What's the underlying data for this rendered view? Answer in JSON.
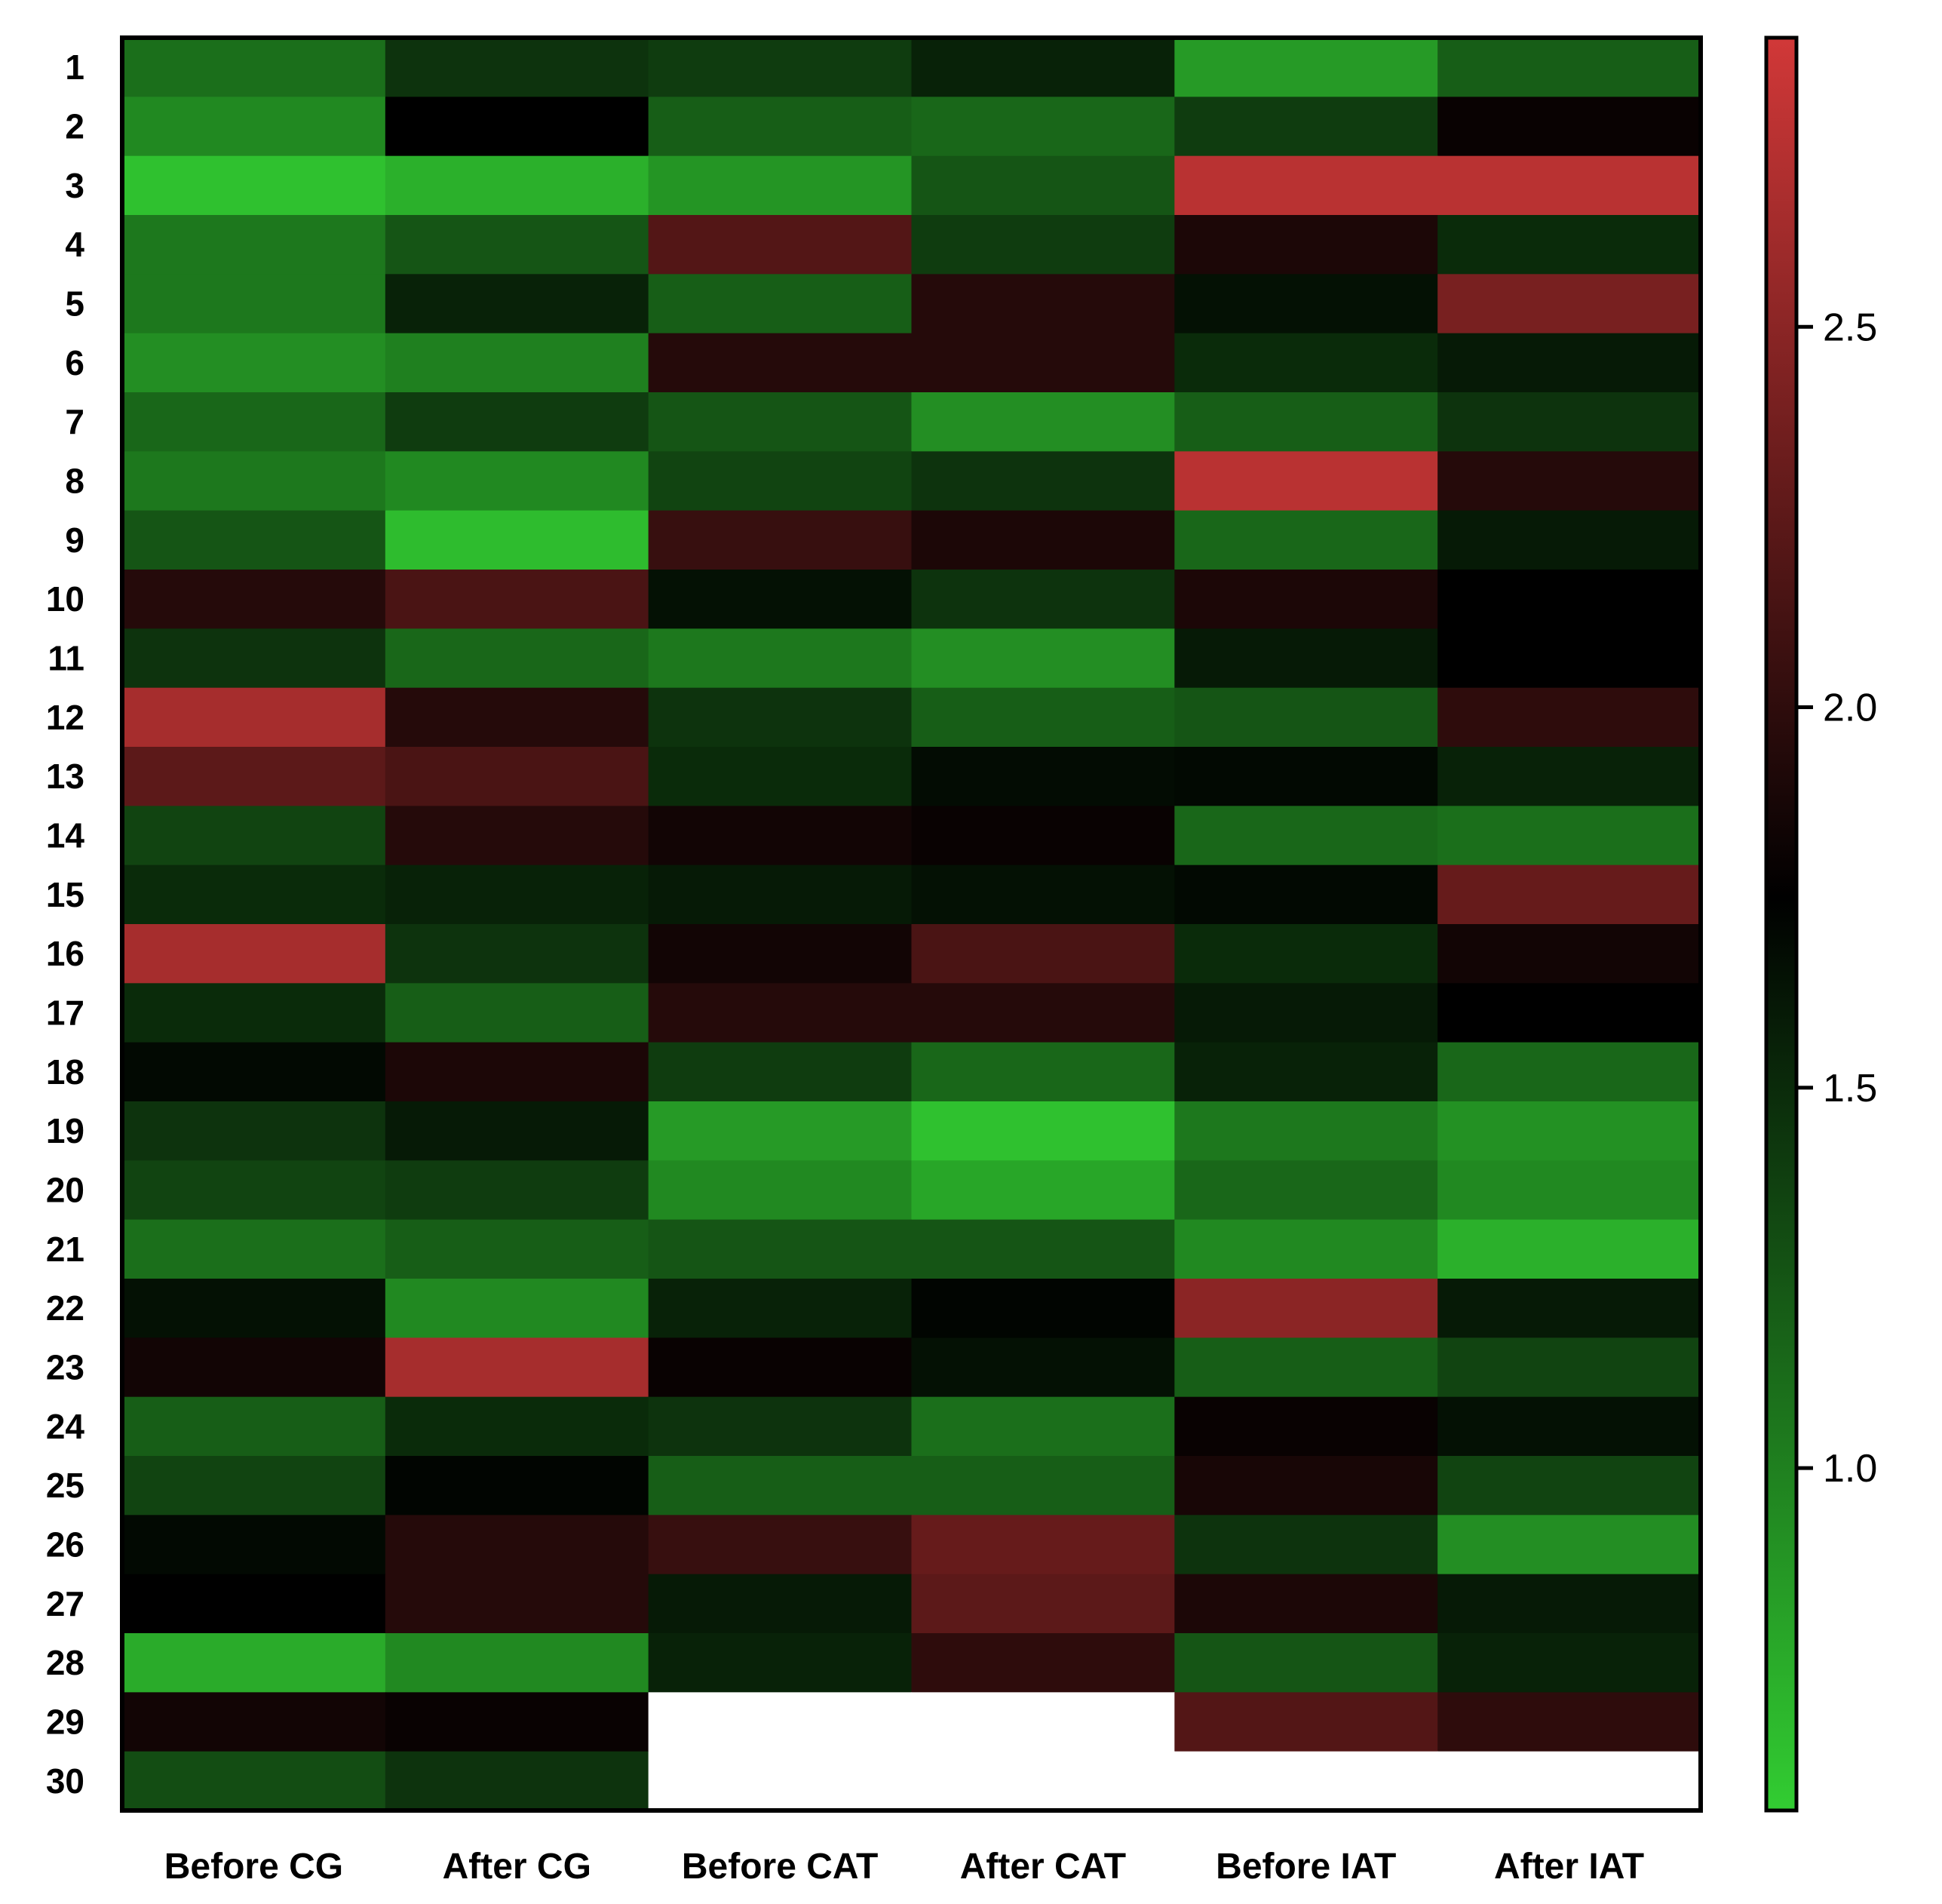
{
  "chart_data": {
    "type": "heatmap",
    "title": "",
    "xlabel": "",
    "ylabel": "",
    "columns": [
      "Before CG",
      "After CG",
      "Before CAT",
      "After CAT",
      "Before IAT",
      "After IAT"
    ],
    "rows": [
      "1",
      "2",
      "3",
      "4",
      "5",
      "6",
      "7",
      "8",
      "9",
      "10",
      "11",
      "12",
      "13",
      "14",
      "15",
      "16",
      "17",
      "18",
      "19",
      "20",
      "21",
      "22",
      "23",
      "24",
      "25",
      "26",
      "27",
      "28",
      "29",
      "30"
    ],
    "values": [
      [
        1.1,
        1.45,
        1.4,
        1.55,
        0.85,
        1.2
      ],
      [
        0.95,
        1.75,
        1.2,
        1.15,
        1.4,
        1.8
      ],
      [
        0.62,
        0.72,
        0.88,
        1.25,
        2.75,
        2.75
      ],
      [
        1.05,
        1.25,
        2.2,
        1.4,
        1.9,
        1.5
      ],
      [
        1.05,
        1.55,
        1.2,
        1.95,
        1.65,
        2.4
      ],
      [
        0.92,
        1.0,
        1.95,
        1.95,
        1.5,
        1.6
      ],
      [
        1.15,
        1.4,
        1.25,
        0.92,
        1.2,
        1.45
      ],
      [
        1.05,
        0.95,
        1.35,
        1.45,
        2.75,
        1.95
      ],
      [
        1.25,
        0.65,
        2.05,
        1.9,
        1.15,
        1.6
      ],
      [
        1.95,
        2.15,
        1.65,
        1.45,
        1.9,
        1.75
      ],
      [
        1.45,
        1.15,
        1.05,
        0.92,
        1.6,
        1.75
      ],
      [
        2.65,
        1.95,
        1.45,
        1.2,
        1.25,
        2.0
      ],
      [
        2.25,
        2.15,
        1.5,
        1.68,
        1.7,
        1.55
      ],
      [
        1.35,
        1.95,
        1.85,
        1.8,
        1.15,
        1.1
      ],
      [
        1.5,
        1.55,
        1.6,
        1.65,
        1.7,
        2.3
      ],
      [
        2.65,
        1.45,
        1.85,
        2.15,
        1.5,
        1.85
      ],
      [
        1.5,
        1.2,
        1.95,
        1.95,
        1.6,
        1.75
      ],
      [
        1.7,
        1.9,
        1.4,
        1.15,
        1.55,
        1.15
      ],
      [
        1.45,
        1.6,
        0.85,
        0.62,
        1.05,
        0.9
      ],
      [
        1.35,
        1.4,
        0.95,
        0.78,
        1.15,
        0.95
      ],
      [
        1.1,
        1.2,
        1.25,
        1.25,
        0.95,
        0.72
      ],
      [
        1.65,
        0.95,
        1.55,
        1.72,
        2.5,
        1.6
      ],
      [
        1.85,
        2.65,
        1.8,
        1.65,
        1.2,
        1.35
      ],
      [
        1.2,
        1.5,
        1.45,
        1.1,
        1.8,
        1.65
      ],
      [
        1.35,
        1.72,
        1.2,
        1.2,
        1.88,
        1.35
      ],
      [
        1.7,
        1.95,
        2.05,
        2.3,
        1.45,
        0.92
      ],
      [
        1.75,
        1.95,
        1.6,
        2.25,
        1.9,
        1.6
      ],
      [
        0.75,
        0.95,
        1.55,
        2.0,
        1.25,
        1.55
      ],
      [
        1.85,
        1.8,
        null,
        null,
        2.2,
        2.0
      ],
      [
        1.3,
        1.45,
        null,
        null,
        null,
        null
      ]
    ],
    "missing_cells_color": "#ffffff",
    "colorscale": {
      "type": "green-black-red",
      "stops": [
        {
          "value": 0.55,
          "color": "#32cd32"
        },
        {
          "value": 1.75,
          "color": "#000000"
        },
        {
          "value": 2.88,
          "color": "#d13838"
        }
      ],
      "range": [
        0.55,
        2.88
      ]
    },
    "colorbar": {
      "position": "right",
      "ticks": [
        1.0,
        1.5,
        2.0,
        2.5
      ],
      "tick_labels": [
        "1.0",
        "1.5",
        "2.0",
        "2.5"
      ]
    },
    "grid": false
  }
}
